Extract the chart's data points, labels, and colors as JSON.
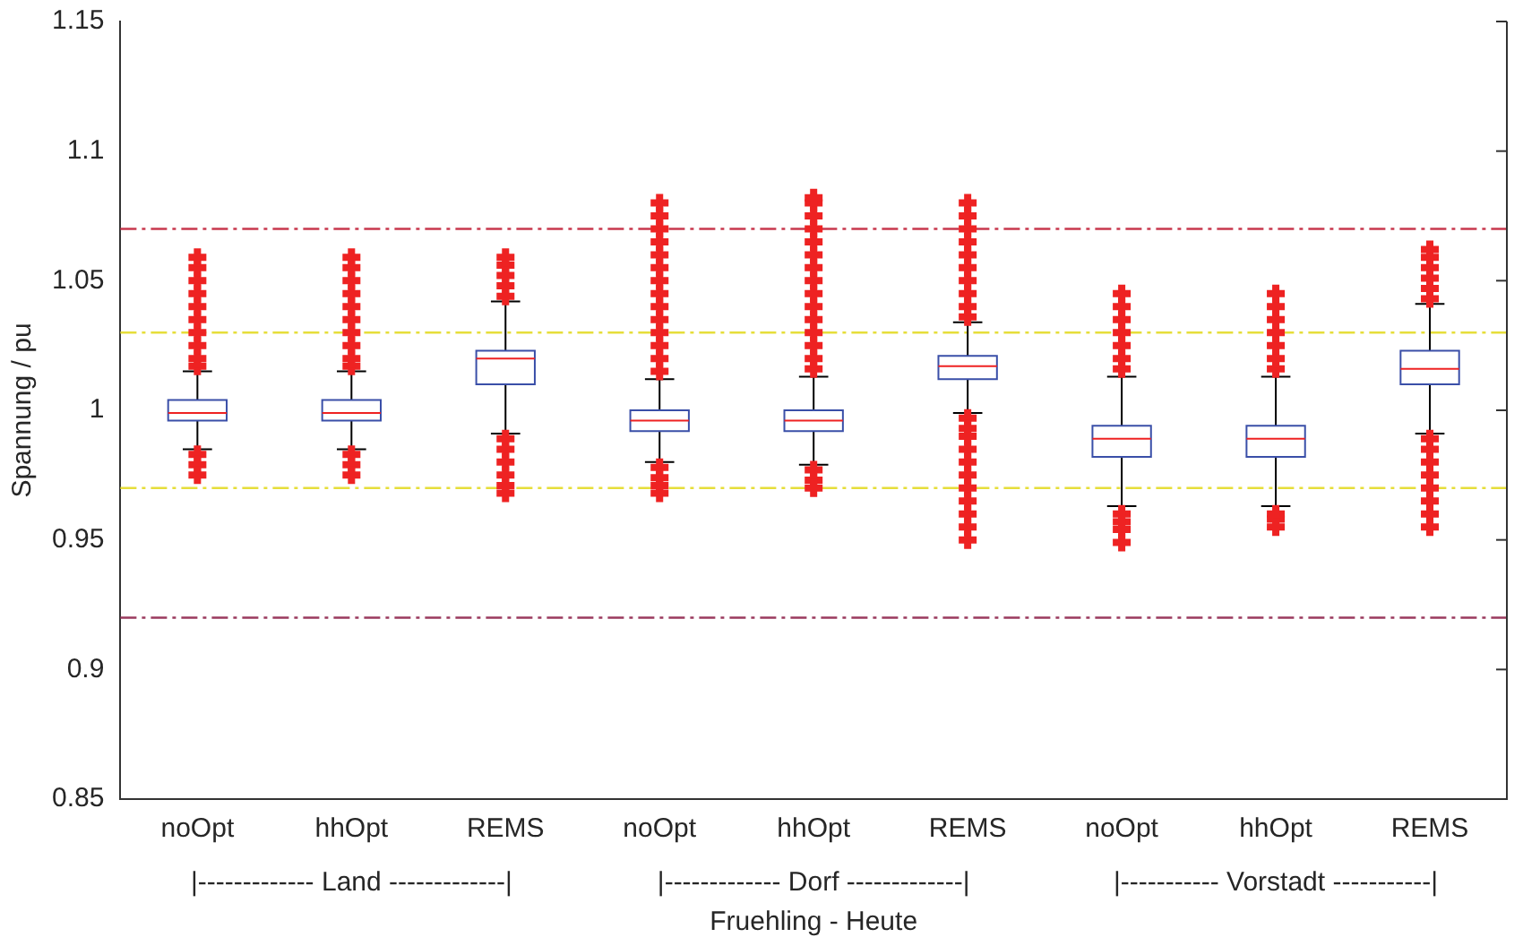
{
  "chart_data": {
    "type": "box",
    "xlabel": "Fruehling - Heute",
    "ylabel": "Spannung / pu",
    "categories": [
      "noOpt",
      "hhOpt",
      "REMS",
      "noOpt",
      "hhOpt",
      "REMS",
      "noOpt",
      "hhOpt",
      "REMS"
    ],
    "annotations": [
      "|------------- Land -------------|",
      "|------------- Dorf -------------|",
      "|----------- Vorstadt -----------|"
    ],
    "ylim": [
      0.85,
      1.15
    ],
    "yticks": [
      0.85,
      0.9,
      0.95,
      1,
      1.05,
      1.1,
      1.15
    ],
    "grid": false,
    "legend": false,
    "marker": "cross",
    "series": [
      {
        "color": "#3a4fa8",
        "boxes": [
          {
            "low": 0.985,
            "q1": 0.996,
            "median": 0.999,
            "q3": 1.004,
            "high": 1.015,
            "outliers": [
              1.017,
              1.02,
              1.025,
              1.03,
              1.035,
              1.04,
              1.045,
              1.05,
              1.055,
              1.059,
              0.983,
              0.979,
              0.975
            ]
          },
          {
            "low": 0.985,
            "q1": 0.996,
            "median": 0.999,
            "q3": 1.004,
            "high": 1.015,
            "outliers": [
              1.017,
              1.02,
              1.025,
              1.03,
              1.035,
              1.04,
              1.045,
              1.05,
              1.055,
              1.059,
              0.983,
              0.979,
              0.975
            ]
          },
          {
            "low": 0.991,
            "q1": 1.01,
            "median": 1.02,
            "q3": 1.023,
            "high": 1.042,
            "outliers": [
              1.044,
              1.048,
              1.052,
              1.056,
              1.059,
              0.989,
              0.985,
              0.98,
              0.975,
              0.971,
              0.968
            ]
          },
          {
            "low": 0.98,
            "q1": 0.992,
            "median": 0.996,
            "q3": 1,
            "high": 1.012,
            "outliers": [
              1.015,
              1.02,
              1.025,
              1.03,
              1.035,
              1.04,
              1.045,
              1.05,
              1.055,
              1.06,
              1.065,
              1.07,
              1.075,
              1.08,
              0.978,
              0.974,
              0.971,
              0.968
            ]
          },
          {
            "low": 0.979,
            "q1": 0.992,
            "median": 0.996,
            "q3": 1,
            "high": 1.013,
            "outliers": [
              1.016,
              1.02,
              1.025,
              1.03,
              1.035,
              1.04,
              1.045,
              1.05,
              1.055,
              1.06,
              1.065,
              1.07,
              1.075,
              1.08,
              1.082,
              0.977,
              0.973,
              0.97
            ]
          },
          {
            "low": 0.999,
            "q1": 1.012,
            "median": 1.017,
            "q3": 1.021,
            "high": 1.034,
            "outliers": [
              1.036,
              1.04,
              1.045,
              1.05,
              1.055,
              1.06,
              1.065,
              1.07,
              1.075,
              1.08,
              0.997,
              0.993,
              0.99,
              0.985,
              0.98,
              0.975,
              0.97,
              0.965,
              0.96,
              0.955,
              0.95
            ]
          },
          {
            "low": 0.963,
            "q1": 0.982,
            "median": 0.989,
            "q3": 0.994,
            "high": 1.013,
            "outliers": [
              1.016,
              1.02,
              1.025,
              1.03,
              1.035,
              1.04,
              1.045,
              0.96,
              0.957,
              0.954,
              0.949
            ]
          },
          {
            "low": 0.963,
            "q1": 0.982,
            "median": 0.989,
            "q3": 0.994,
            "high": 1.013,
            "outliers": [
              1.016,
              1.02,
              1.025,
              1.03,
              1.035,
              1.04,
              1.045,
              0.96,
              0.958,
              0.955
            ]
          },
          {
            "low": 0.991,
            "q1": 1.01,
            "median": 1.016,
            "q3": 1.023,
            "high": 1.041,
            "outliers": [
              1.043,
              1.047,
              1.051,
              1.055,
              1.059,
              1.062,
              0.989,
              0.985,
              0.98,
              0.975,
              0.97,
              0.965,
              0.96,
              0.955
            ]
          }
        ]
      }
    ],
    "ref_lines": [
      {
        "axis": "y",
        "value": 1.07,
        "color": "#c8384e",
        "line_style": "dashed"
      },
      {
        "axis": "y",
        "value": 1.03,
        "color": "#e6de3a",
        "line_style": "dashed"
      },
      {
        "axis": "y",
        "value": 0.97,
        "color": "#e6de3a",
        "line_style": "dashed"
      },
      {
        "axis": "y",
        "value": 0.92,
        "color": "#9a3a5e",
        "line_style": "dashed"
      }
    ]
  }
}
